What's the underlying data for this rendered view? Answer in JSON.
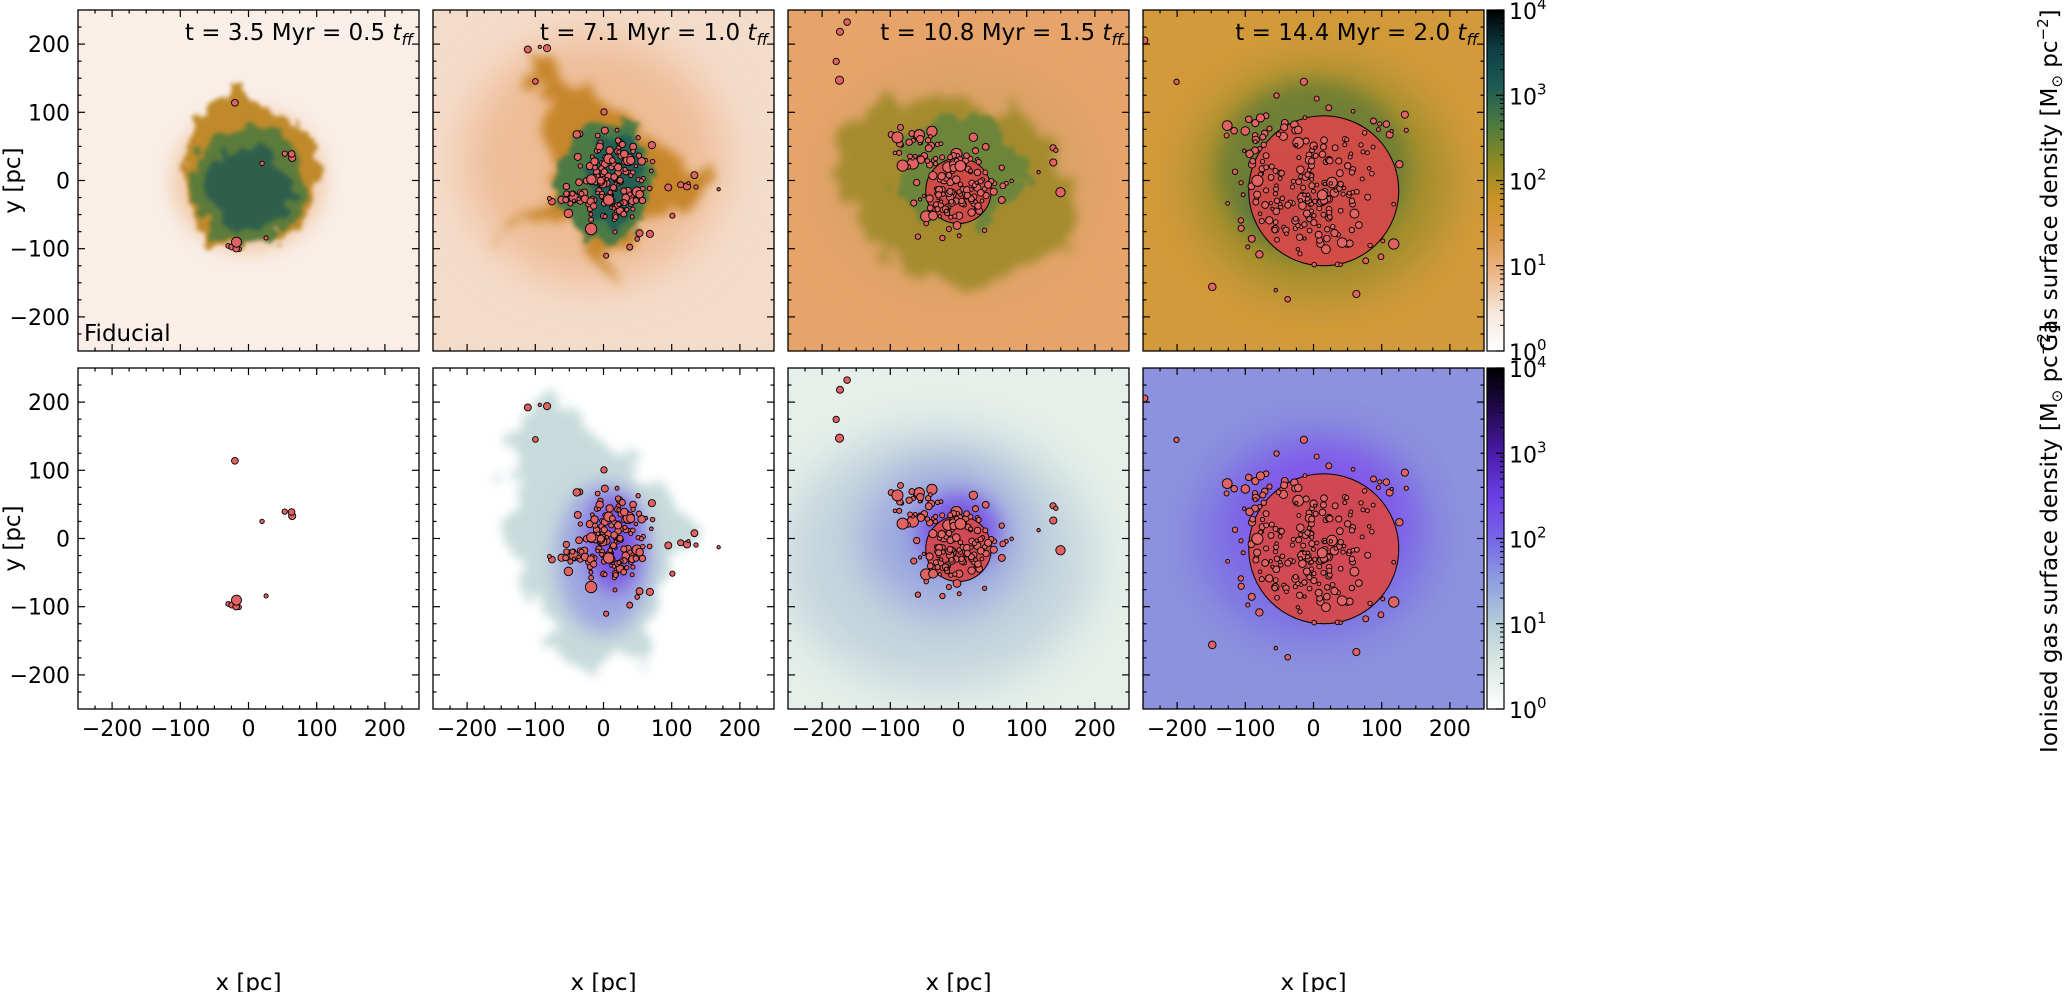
{
  "figure": {
    "colors": {
      "gas_cmap": [
        "#ffffff",
        "#f6e7dc",
        "#edb98c",
        "#dd9a4c",
        "#c99325",
        "#8c8a24",
        "#4a7a3f",
        "#1d5a55",
        "#0e3d43",
        "#000000"
      ],
      "ion_cmap": [
        "#ffffff",
        "#dde9e3",
        "#b6cdd7",
        "#8d9fe0",
        "#7665e6",
        "#6a3ee6",
        "#4a1ba8",
        "#22094f",
        "#000000"
      ],
      "star_fill": "#e06262",
      "star_edge": "#000000",
      "sphere_fill": "#d84848"
    }
  },
  "chart_data": {
    "type": "heatmap",
    "description_model": "simulated star-forming cloud: gas surface density projections with star particles",
    "columns": [
      {
        "title_prefix": "t = 3.5 Myr = 0.5 ",
        "title_var": "t",
        "title_sub": "ff",
        "t_myr": 3.5,
        "t_over_tff": 0.5
      },
      {
        "title_prefix": "t = 7.1 Myr = 1.0 ",
        "title_var": "t",
        "title_sub": "ff",
        "t_myr": 7.1,
        "t_over_tff": 1.0
      },
      {
        "title_prefix": "t = 10.8 Myr = 1.5 ",
        "title_var": "t",
        "title_sub": "ff",
        "t_myr": 10.8,
        "t_over_tff": 1.5
      },
      {
        "title_prefix": "t = 14.4 Myr = 2.0 ",
        "title_var": "t",
        "title_sub": "ff",
        "t_myr": 14.4,
        "t_over_tff": 2.0
      }
    ],
    "rows": [
      {
        "quantity": "gas",
        "colorbar": {
          "label_prefix": "Gas surface density [M",
          "label_sym": "⊙",
          "label_unit": " pc",
          "label_exp": "−2",
          "label_suffix": "]",
          "scale": "log",
          "vmin": 1,
          "vmax": 10000,
          "ticks": [
            {
              "v": 1,
              "base": "10",
              "exp": "0"
            },
            {
              "v": 10,
              "base": "10",
              "exp": "1"
            },
            {
              "v": 100,
              "base": "10",
              "exp": "2"
            },
            {
              "v": 1000,
              "base": "10",
              "exp": "3"
            },
            {
              "v": 10000,
              "base": "10",
              "exp": "4"
            }
          ]
        }
      },
      {
        "quantity": "ionised",
        "colorbar": {
          "label_prefix": "Ionised gas surface density [M",
          "label_sym": "⊙",
          "label_unit": " pc",
          "label_exp": "−2",
          "label_suffix": "]",
          "scale": "log",
          "vmin": 1,
          "vmax": 10000,
          "ticks": [
            {
              "v": 1,
              "base": "10",
              "exp": "0"
            },
            {
              "v": 10,
              "base": "10",
              "exp": "1"
            },
            {
              "v": 100,
              "base": "10",
              "exp": "2"
            },
            {
              "v": 1000,
              "base": "10",
              "exp": "3"
            },
            {
              "v": 10000,
              "base": "10",
              "exp": "4"
            }
          ]
        }
      }
    ],
    "model_label": "Fiducial",
    "xlabel": "x [pc]",
    "ylabel": "y [pc]",
    "xlim": [
      -250,
      250
    ],
    "ylim": [
      -250,
      250
    ],
    "xticks": [
      -200,
      -100,
      0,
      100,
      200
    ],
    "yticks": [
      -200,
      -100,
      0,
      100,
      200
    ],
    "bubbles": [
      {
        "column": 0,
        "cx": 0,
        "cy": 0,
        "r": 0
      },
      {
        "column": 1,
        "cx": 0,
        "cy": 0,
        "r": 0
      },
      {
        "column": 2,
        "cx": 0,
        "cy": -15,
        "r": 48
      },
      {
        "column": 3,
        "cx": 15,
        "cy": -15,
        "r": 110
      }
    ],
    "star_clusters": [
      [
        {
          "x": -20,
          "y": 115,
          "n": 1,
          "sx": 2,
          "sy": 2
        },
        {
          "x": 65,
          "y": 40,
          "n": 3,
          "sx": 5,
          "sy": 4
        },
        {
          "x": -20,
          "y": -100,
          "n": 5,
          "sx": 6,
          "sy": 6
        },
        {
          "x": 20,
          "y": 25,
          "n": 1,
          "sx": 1,
          "sy": 1
        },
        {
          "x": 25,
          "y": -85,
          "n": 1,
          "sx": 1,
          "sy": 1
        }
      ],
      [
        {
          "x": 20,
          "y": -5,
          "n": 150,
          "sx": 25,
          "sy": 35
        },
        {
          "x": -40,
          "y": -25,
          "n": 25,
          "sx": 20,
          "sy": 10
        },
        {
          "x": -100,
          "y": 175,
          "n": 4,
          "sx": 10,
          "sy": 20
        },
        {
          "x": 130,
          "y": -5,
          "n": 6,
          "sx": 15,
          "sy": 5
        },
        {
          "x": 60,
          "y": -8,
          "n": 4,
          "sx": 15,
          "sy": 6
        }
      ],
      [
        {
          "x": -5,
          "y": -10,
          "n": 130,
          "sx": 30,
          "sy": 28
        },
        {
          "x": -65,
          "y": 60,
          "n": 25,
          "sx": 20,
          "sy": 22
        },
        {
          "x": -175,
          "y": 180,
          "n": 4,
          "sx": 8,
          "sy": 35
        },
        {
          "x": 140,
          "y": 35,
          "n": 4,
          "sx": 20,
          "sy": 15
        },
        {
          "x": 50,
          "y": 20,
          "n": 8,
          "sx": 30,
          "sy": 20
        }
      ],
      [
        {
          "x": 0,
          "y": -15,
          "n": 200,
          "sx": 50,
          "sy": 55
        },
        {
          "x": -85,
          "y": 35,
          "n": 35,
          "sx": 25,
          "sy": 40
        },
        {
          "x": 130,
          "y": 80,
          "n": 5,
          "sx": 25,
          "sy": 15
        },
        {
          "x": -245,
          "y": 205,
          "n": 1,
          "sx": 2,
          "sy": 2
        },
        {
          "x": -200,
          "y": 150,
          "n": 1,
          "sx": 2,
          "sy": 2
        }
      ]
    ]
  }
}
